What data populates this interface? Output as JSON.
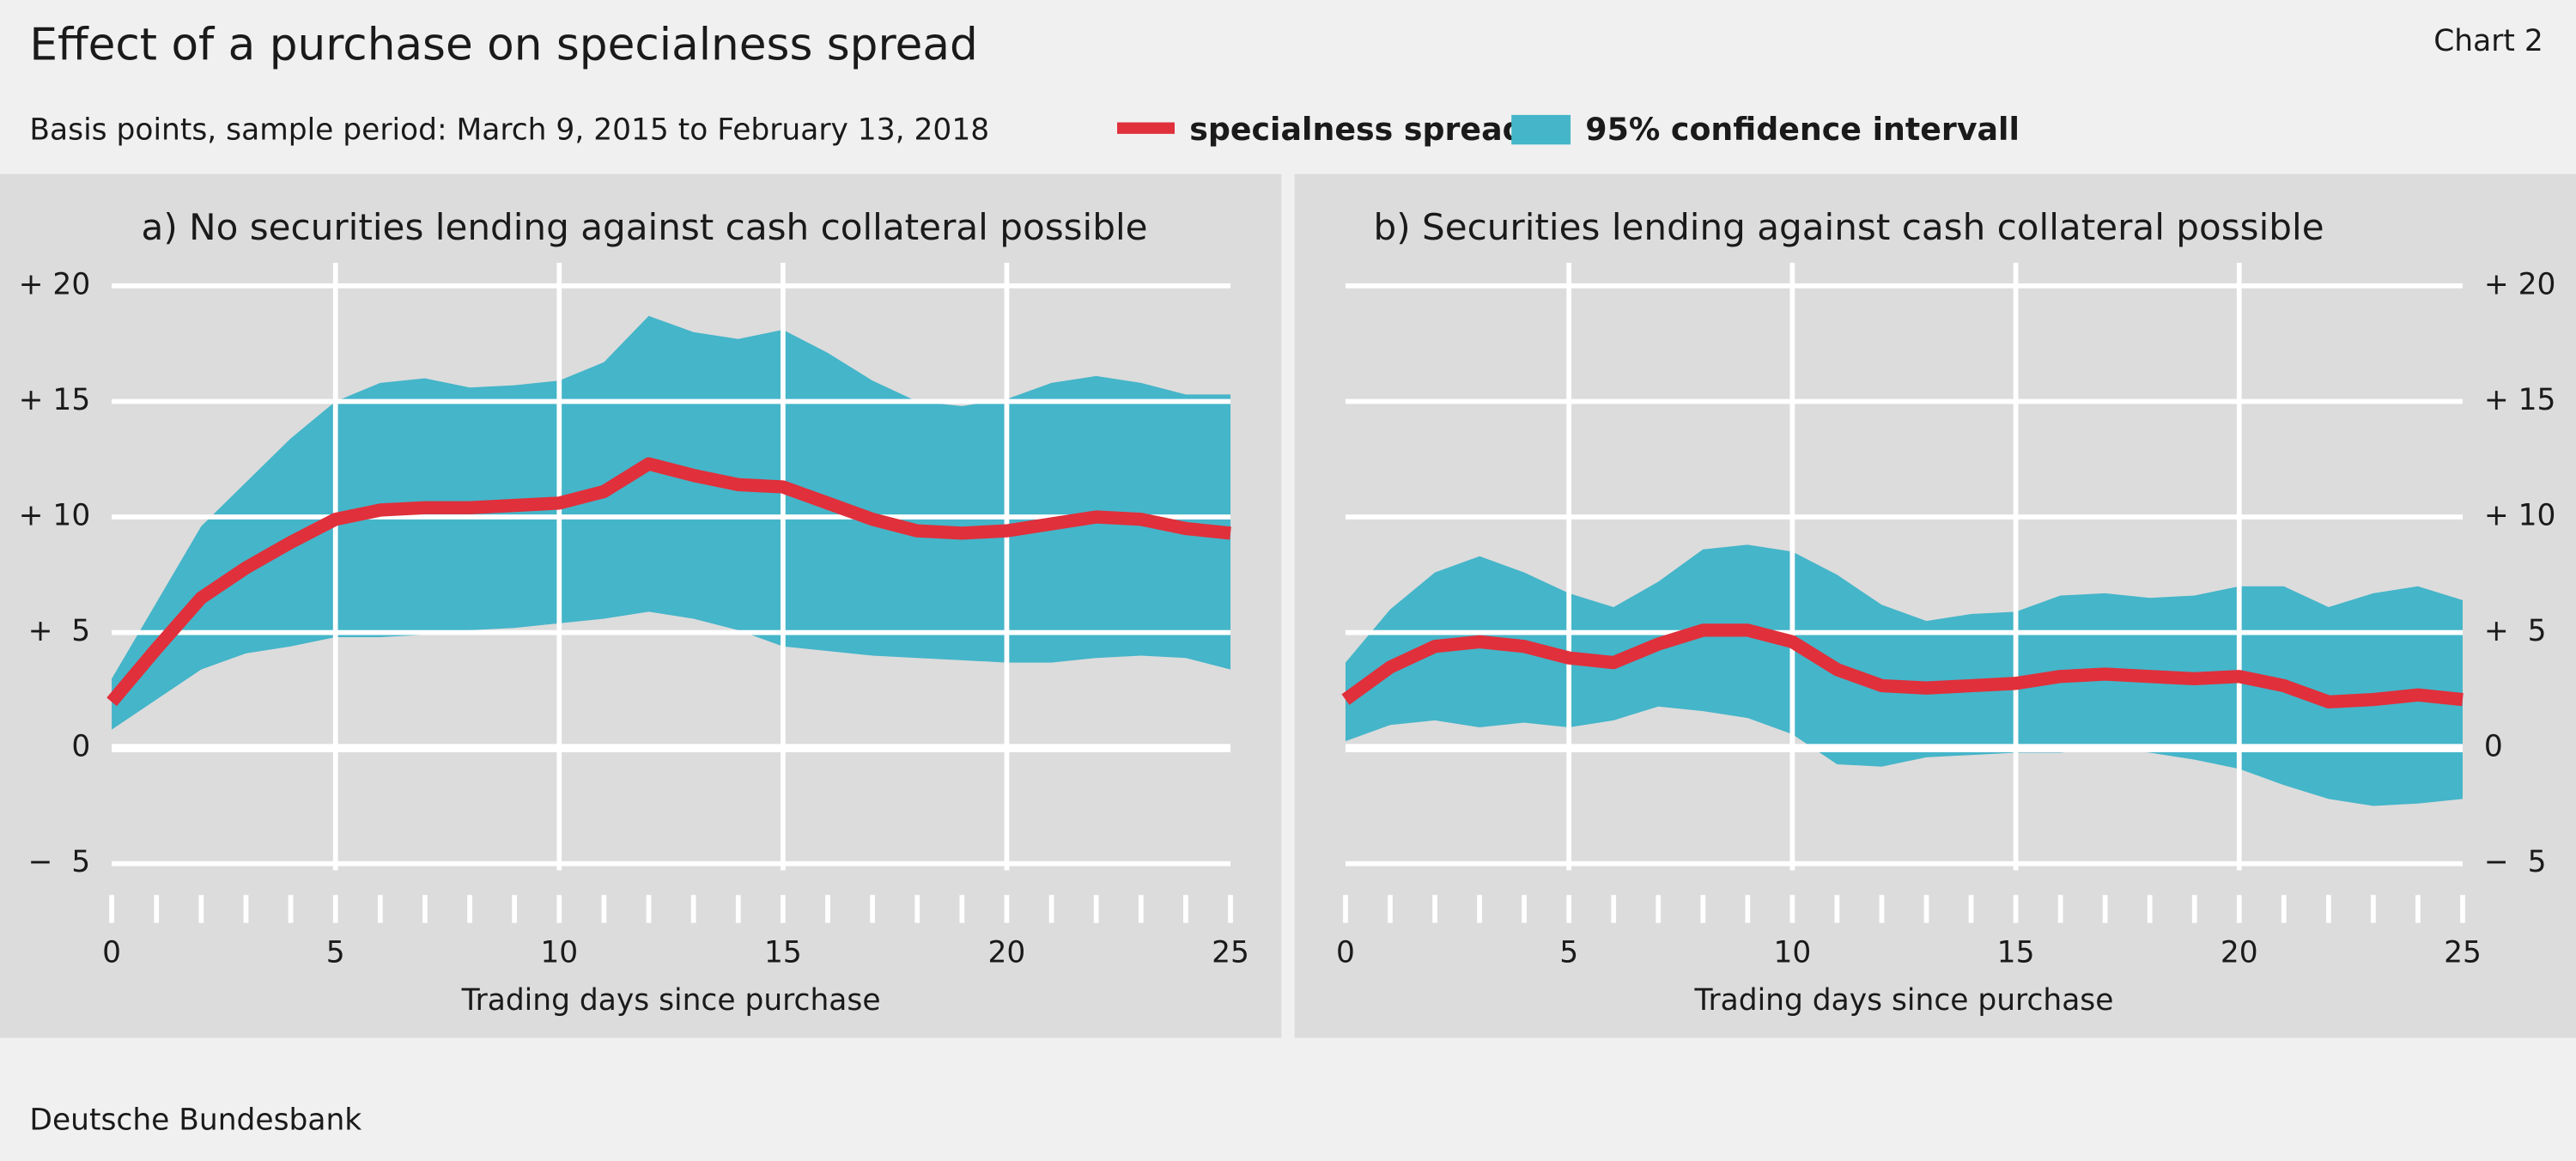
{
  "header": {
    "title": "Effect of a purchase on specialness spread",
    "subtitle": "Basis points, sample period: March 9, 2015 to February 13, 2018",
    "chart_label": "Chart 2"
  },
  "footer": {
    "source": "Deutsche Bundesbank"
  },
  "chart_data": [
    {
      "type": "line",
      "title": "a) No securities lending against cash collateral possible",
      "x_label": "Trading days since purchase",
      "x": [
        0,
        1,
        2,
        3,
        4,
        5,
        6,
        7,
        8,
        9,
        10,
        11,
        12,
        13,
        14,
        15,
        16,
        17,
        18,
        19,
        20,
        21,
        22,
        23,
        24,
        25
      ],
      "xlim": [
        0,
        25
      ],
      "xticks": [
        0,
        5,
        10,
        15,
        20,
        25
      ],
      "ylim": [
        -6,
        21
      ],
      "yticks": [
        {
          "value": 20,
          "label": "+ 20"
        },
        {
          "value": 15,
          "label": "+ 15"
        },
        {
          "value": 10,
          "label": "+ 10"
        },
        {
          "value": 5,
          "label": "+  5"
        },
        0,
        {
          "value": -5,
          "label": "−  5"
        }
      ],
      "yaxis_side": "left",
      "grid": true,
      "bands": [
        {
          "name": "95% confidence intervall",
          "color": "#45b5c9",
          "upper": [
            3.0,
            6.3,
            9.6,
            11.5,
            13.4,
            15.0,
            15.8,
            16.0,
            15.6,
            15.7,
            15.9,
            16.7,
            18.7,
            18.0,
            17.7,
            18.1,
            17.1,
            15.9,
            15.0,
            14.8,
            15.1,
            15.8,
            16.1,
            15.8,
            15.3,
            15.3
          ],
          "lower": [
            0.8,
            2.1,
            3.4,
            4.1,
            4.4,
            4.8,
            4.8,
            4.9,
            5.1,
            5.2,
            5.4,
            5.6,
            5.9,
            5.6,
            5.1,
            4.4,
            4.2,
            4.0,
            3.9,
            3.8,
            3.7,
            3.7,
            3.9,
            4.0,
            3.9,
            3.4
          ]
        }
      ],
      "series": [
        {
          "name": "specialness spread",
          "color": "#e0303b",
          "values": [
            2.0,
            4.3,
            6.5,
            7.8,
            8.9,
            9.9,
            10.3,
            10.4,
            10.4,
            10.5,
            10.6,
            11.1,
            12.3,
            11.8,
            11.4,
            11.3,
            10.6,
            9.9,
            9.4,
            9.3,
            9.4,
            9.7,
            10.0,
            9.9,
            9.5,
            9.3
          ]
        }
      ]
    },
    {
      "type": "line",
      "title": "b) Securities lending against cash collateral possible",
      "x_label": "Trading days since purchase",
      "x": [
        0,
        1,
        2,
        3,
        4,
        5,
        6,
        7,
        8,
        9,
        10,
        11,
        12,
        13,
        14,
        15,
        16,
        17,
        18,
        19,
        20,
        21,
        22,
        23,
        24,
        25
      ],
      "xlim": [
        0,
        25
      ],
      "xticks": [
        0,
        5,
        10,
        15,
        20,
        25
      ],
      "ylim": [
        -6,
        21
      ],
      "yticks": [
        {
          "value": 20,
          "label": "+ 20"
        },
        {
          "value": 15,
          "label": "+ 15"
        },
        {
          "value": 10,
          "label": "+ 10"
        },
        {
          "value": 5,
          "label": "+  5"
        },
        0,
        {
          "value": -5,
          "label": "−  5"
        }
      ],
      "yaxis_side": "right",
      "grid": true,
      "bands": [
        {
          "color": "#45b5c9",
          "upper": [
            3.7,
            6.0,
            7.6,
            8.3,
            7.6,
            6.7,
            6.1,
            7.2,
            8.6,
            8.8,
            8.5,
            7.5,
            6.2,
            5.5,
            5.8,
            5.9,
            6.6,
            6.7,
            6.5,
            6.6,
            7.0,
            7.0,
            6.1,
            6.7,
            7.0,
            6.4
          ],
          "lower": [
            0.3,
            1.0,
            1.2,
            0.9,
            1.1,
            0.9,
            1.2,
            1.8,
            1.6,
            1.3,
            0.6,
            -0.7,
            -0.8,
            -0.4,
            -0.3,
            -0.2,
            -0.2,
            0.0,
            -0.2,
            -0.5,
            -0.9,
            -1.6,
            -2.2,
            -2.5,
            -2.4,
            -2.2
          ]
        }
      ],
      "series": [
        {
          "color": "#e0303b",
          "values": [
            2.1,
            3.5,
            4.4,
            4.6,
            4.4,
            3.9,
            3.7,
            4.5,
            5.1,
            5.1,
            4.6,
            3.4,
            2.7,
            2.6,
            2.7,
            2.8,
            3.1,
            3.2,
            3.1,
            3.0,
            3.1,
            2.7,
            2.0,
            2.1,
            2.3,
            2.1
          ]
        }
      ]
    }
  ]
}
